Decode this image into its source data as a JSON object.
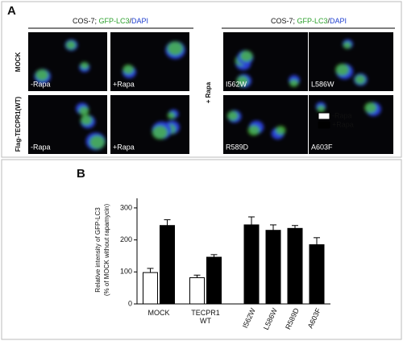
{
  "panel_a": {
    "label": "A",
    "header": [
      "COS-7; ",
      "GFP-LC3",
      "/",
      "DAPI"
    ],
    "row_labels": [
      "MOCK",
      "Flag-TECPR1(WT)"
    ],
    "left_images": [
      [
        "-Rapa",
        "+Rapa"
      ],
      [
        "-Rapa",
        "+Rapa"
      ]
    ],
    "right_label": "+ Rapa",
    "right_images": [
      [
        "I562W",
        "L586W"
      ],
      [
        "R589D",
        "A603F"
      ]
    ]
  },
  "chart_data": {
    "type": "bar",
    "panel_label": "B",
    "ylabel": [
      "Relative intensity of GFP-LC3",
      "(% of MOCK without rapamycin)"
    ],
    "categories": [
      "MOCK",
      "TECPR1 WT",
      "I562W",
      "L586W",
      "R589D",
      "A603F"
    ],
    "series": [
      {
        "name": "-Rapa",
        "color": "#ffffff",
        "values": [
          98,
          82,
          null,
          null,
          null,
          null
        ],
        "errors": [
          13,
          8,
          null,
          null,
          null,
          null
        ]
      },
      {
        "name": "+Rapa",
        "color": "#000000",
        "values": [
          245,
          146,
          247,
          230,
          236,
          185
        ],
        "errors": [
          18,
          8,
          25,
          17,
          9,
          22
        ]
      }
    ],
    "ylim": [
      0,
      330
    ],
    "yticks": [
      0,
      100,
      200,
      300
    ],
    "legend": "upper right"
  }
}
